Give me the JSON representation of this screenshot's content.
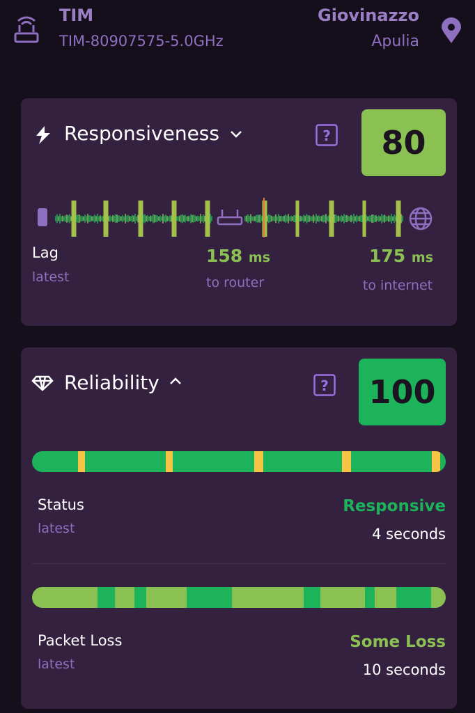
{
  "header": {
    "network": "TIM",
    "ssid": "TIM-80907575-5.0GHz",
    "city": "Giovinazzo",
    "region": "Apulia"
  },
  "responsiveness": {
    "title": "Responsiveness",
    "score": 80,
    "lag_label": "Lag",
    "lag_sub": "latest",
    "router_value": 158,
    "router_unit": "ms",
    "router_label": "to router",
    "internet_value": 175,
    "internet_unit": "ms",
    "internet_label": "to internet"
  },
  "reliability": {
    "title": "Reliability",
    "score": 100,
    "status_label": "Status",
    "status_sub": "latest",
    "status_value": "Responsive",
    "status_time": "4 seconds",
    "loss_label": "Packet Loss",
    "loss_sub": "latest",
    "loss_value": "Some Loss",
    "loss_time": "10 seconds"
  }
}
